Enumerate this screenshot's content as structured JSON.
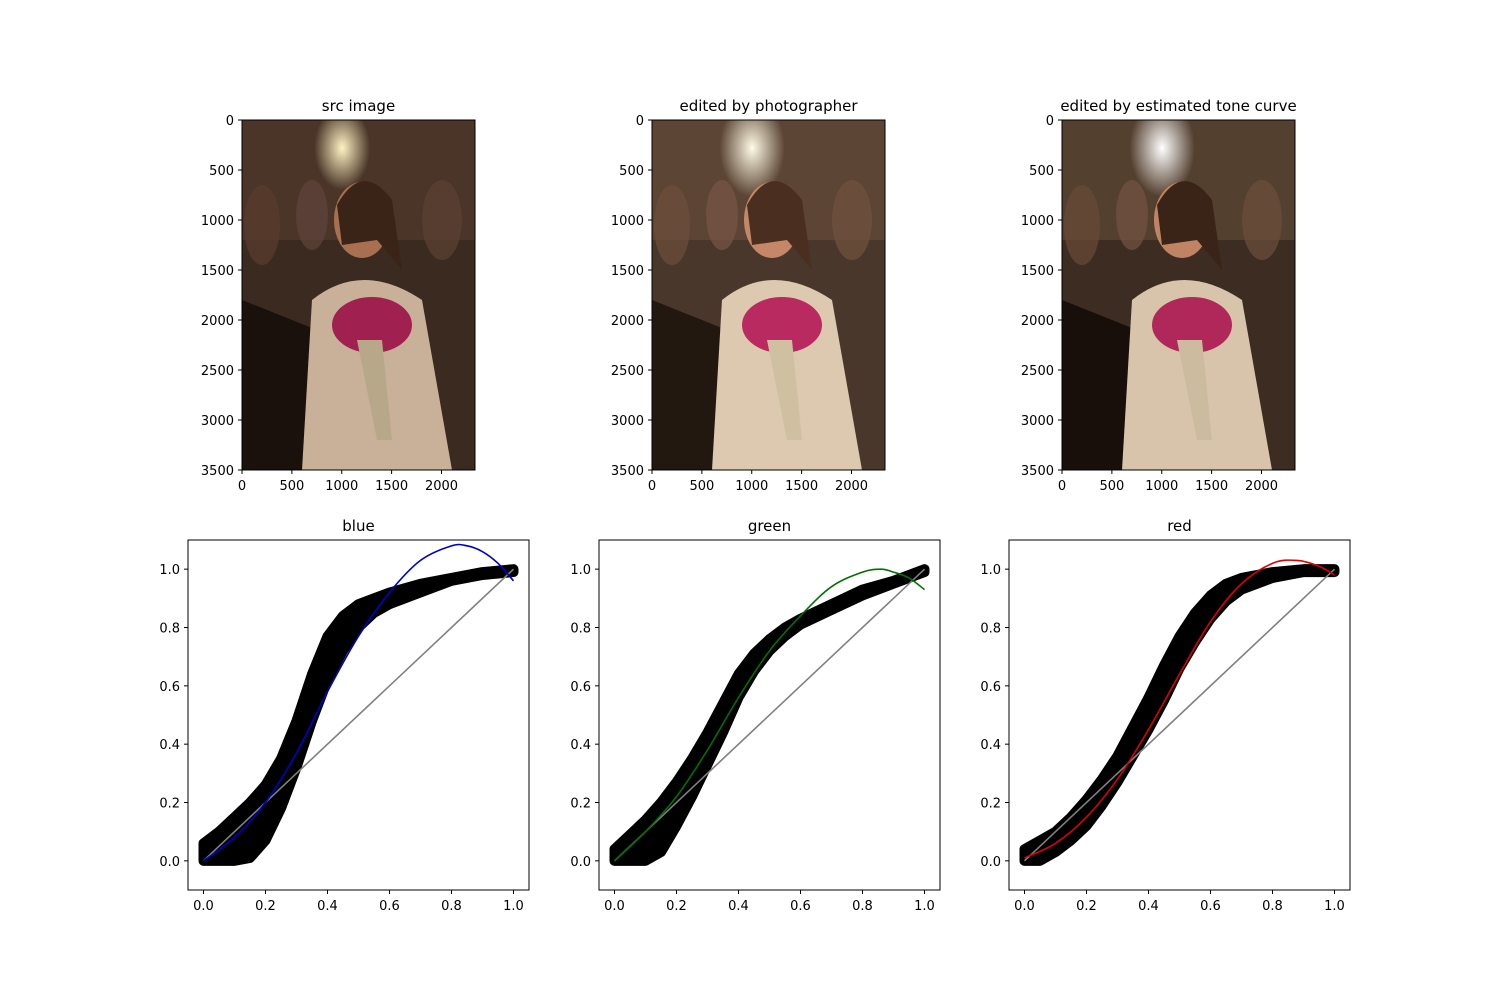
{
  "images": [
    {
      "title": "src image",
      "xticks": [
        0,
        500,
        1000,
        1500,
        2000
      ],
      "yticks": [
        0,
        500,
        1000,
        1500,
        2000,
        2500,
        3000,
        3500
      ],
      "xlim": [
        0,
        2336
      ],
      "ylim": [
        3500,
        0
      ],
      "tone": "src"
    },
    {
      "title": "edited by photographer",
      "xticks": [
        0,
        500,
        1000,
        1500,
        2000
      ],
      "yticks": [
        0,
        500,
        1000,
        1500,
        2000,
        2500,
        3000,
        3500
      ],
      "xlim": [
        0,
        2336
      ],
      "ylim": [
        3500,
        0
      ],
      "tone": "photographer"
    },
    {
      "title": "edited by estimated tone curve",
      "xticks": [
        0,
        500,
        1000,
        1500,
        2000
      ],
      "yticks": [
        0,
        500,
        1000,
        1500,
        2000,
        2500,
        3000,
        3500
      ],
      "xlim": [
        0,
        2336
      ],
      "ylim": [
        3500,
        0
      ],
      "tone": "estimated"
    }
  ],
  "chart_data": [
    {
      "type": "scatter",
      "title": "blue",
      "xlim": [
        -0.05,
        1.05
      ],
      "ylim": [
        -0.1,
        1.1
      ],
      "xticks": [
        "0.0",
        "0.2",
        "0.4",
        "0.6",
        "0.8",
        "1.0"
      ],
      "yticks": [
        "0.0",
        "0.2",
        "0.4",
        "0.6",
        "0.8",
        "1.0"
      ],
      "fit_color": "#0000cc",
      "scatter_band": {
        "x": [
          0.0,
          0.05,
          0.1,
          0.15,
          0.2,
          0.25,
          0.3,
          0.35,
          0.4,
          0.45,
          0.5,
          0.55,
          0.6,
          0.7,
          0.8,
          0.9,
          1.0
        ],
        "lower": [
          0.0,
          0.0,
          0.0,
          0.01,
          0.07,
          0.18,
          0.32,
          0.48,
          0.62,
          0.72,
          0.8,
          0.85,
          0.88,
          0.92,
          0.96,
          0.98,
          0.99
        ],
        "upper": [
          0.06,
          0.1,
          0.15,
          0.2,
          0.26,
          0.35,
          0.48,
          0.64,
          0.77,
          0.84,
          0.88,
          0.9,
          0.92,
          0.95,
          0.97,
          0.99,
          1.0
        ]
      },
      "fit": {
        "x": [
          0.0,
          0.1,
          0.2,
          0.3,
          0.4,
          0.5,
          0.6,
          0.7,
          0.8,
          0.85,
          0.9,
          0.95,
          1.0
        ],
        "y": [
          0.0,
          0.08,
          0.2,
          0.37,
          0.58,
          0.77,
          0.92,
          1.03,
          1.08,
          1.08,
          1.06,
          1.02,
          0.96
        ]
      },
      "identity": {
        "x": [
          0.0,
          1.0
        ],
        "y": [
          0.0,
          1.0
        ],
        "color": "#808080"
      }
    },
    {
      "type": "scatter",
      "title": "green",
      "xlim": [
        -0.05,
        1.05
      ],
      "ylim": [
        -0.1,
        1.1
      ],
      "xticks": [
        "0.0",
        "0.2",
        "0.4",
        "0.6",
        "0.8",
        "1.0"
      ],
      "yticks": [
        "0.0",
        "0.2",
        "0.4",
        "0.6",
        "0.8",
        "1.0"
      ],
      "fit_color": "#007000",
      "scatter_band": {
        "x": [
          0.0,
          0.05,
          0.1,
          0.15,
          0.2,
          0.25,
          0.3,
          0.35,
          0.4,
          0.45,
          0.5,
          0.55,
          0.6,
          0.7,
          0.8,
          0.9,
          1.0
        ],
        "lower": [
          0.0,
          0.0,
          0.0,
          0.03,
          0.12,
          0.22,
          0.33,
          0.44,
          0.56,
          0.65,
          0.72,
          0.77,
          0.81,
          0.86,
          0.91,
          0.95,
          0.99
        ],
        "upper": [
          0.04,
          0.09,
          0.14,
          0.2,
          0.27,
          0.35,
          0.44,
          0.54,
          0.64,
          0.71,
          0.76,
          0.8,
          0.83,
          0.88,
          0.93,
          0.96,
          1.0
        ]
      },
      "fit": {
        "x": [
          0.0,
          0.1,
          0.2,
          0.3,
          0.4,
          0.5,
          0.6,
          0.7,
          0.8,
          0.86,
          0.9,
          0.95,
          1.0
        ],
        "y": [
          0.0,
          0.1,
          0.22,
          0.38,
          0.56,
          0.72,
          0.84,
          0.94,
          0.99,
          1.0,
          0.99,
          0.97,
          0.93
        ]
      },
      "identity": {
        "x": [
          0.0,
          1.0
        ],
        "y": [
          0.0,
          1.0
        ],
        "color": "#808080"
      }
    },
    {
      "type": "scatter",
      "title": "red",
      "xlim": [
        -0.05,
        1.05
      ],
      "ylim": [
        -0.1,
        1.1
      ],
      "xticks": [
        "0.0",
        "0.2",
        "0.4",
        "0.6",
        "0.8",
        "1.0"
      ],
      "yticks": [
        "0.0",
        "0.2",
        "0.4",
        "0.6",
        "0.8",
        "1.0"
      ],
      "fit_color": "#dd0000",
      "scatter_band": {
        "x": [
          0.0,
          0.05,
          0.1,
          0.15,
          0.2,
          0.25,
          0.3,
          0.35,
          0.4,
          0.45,
          0.5,
          0.55,
          0.6,
          0.65,
          0.7,
          0.8,
          0.9,
          1.0
        ],
        "lower": [
          0.0,
          0.0,
          0.03,
          0.07,
          0.12,
          0.19,
          0.27,
          0.36,
          0.45,
          0.55,
          0.66,
          0.75,
          0.83,
          0.89,
          0.93,
          0.97,
          0.99,
          0.99
        ],
        "upper": [
          0.04,
          0.07,
          0.1,
          0.15,
          0.21,
          0.28,
          0.36,
          0.46,
          0.56,
          0.67,
          0.77,
          0.85,
          0.91,
          0.95,
          0.97,
          0.99,
          1.0,
          1.0
        ]
      },
      "fit": {
        "x": [
          0.0,
          0.1,
          0.2,
          0.3,
          0.4,
          0.5,
          0.6,
          0.7,
          0.8,
          0.88,
          0.95,
          1.0
        ],
        "y": [
          0.01,
          0.06,
          0.15,
          0.28,
          0.45,
          0.64,
          0.82,
          0.95,
          1.02,
          1.03,
          1.01,
          0.98
        ]
      },
      "identity": {
        "x": [
          0.0,
          1.0
        ],
        "y": [
          0.0,
          1.0
        ],
        "color": "#808080"
      }
    }
  ]
}
